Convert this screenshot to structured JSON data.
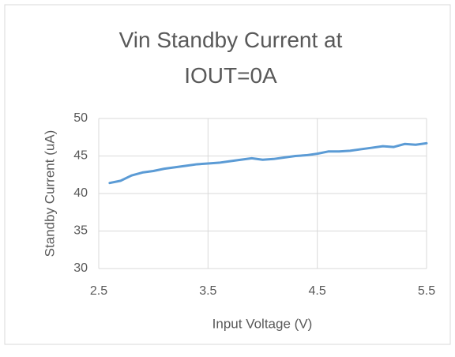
{
  "chart_data": {
    "type": "line",
    "title": "Vin Standby Current at IOUT=0A",
    "x_label": "Input Voltage (V)",
    "y_label": "Standby Current (uA)",
    "x": [
      2.6,
      2.7,
      2.8,
      2.9,
      3.0,
      3.1,
      3.2,
      3.3,
      3.4,
      3.5,
      3.6,
      3.7,
      3.8,
      3.9,
      4.0,
      4.1,
      4.2,
      4.3,
      4.4,
      4.5,
      4.6,
      4.7,
      4.8,
      4.9,
      5.0,
      5.1,
      5.2,
      5.3,
      5.4,
      5.5
    ],
    "series": [
      {
        "name": "Standby Current",
        "color": "#5b9bd5",
        "values": [
          41.4,
          41.7,
          42.4,
          42.8,
          43.0,
          43.3,
          43.5,
          43.7,
          43.9,
          44.0,
          44.1,
          44.3,
          44.5,
          44.7,
          44.5,
          44.6,
          44.8,
          45.0,
          45.1,
          45.3,
          45.6,
          45.6,
          45.7,
          45.9,
          46.1,
          46.3,
          46.2,
          46.6,
          46.5,
          46.7
        ]
      }
    ],
    "xlim": [
      2.5,
      5.5
    ],
    "xticks": [
      2.5,
      3.5,
      4.5,
      5.5
    ],
    "ylim": [
      30,
      50
    ],
    "yticks": [
      30,
      35,
      40,
      45,
      50
    ],
    "grid": true
  }
}
